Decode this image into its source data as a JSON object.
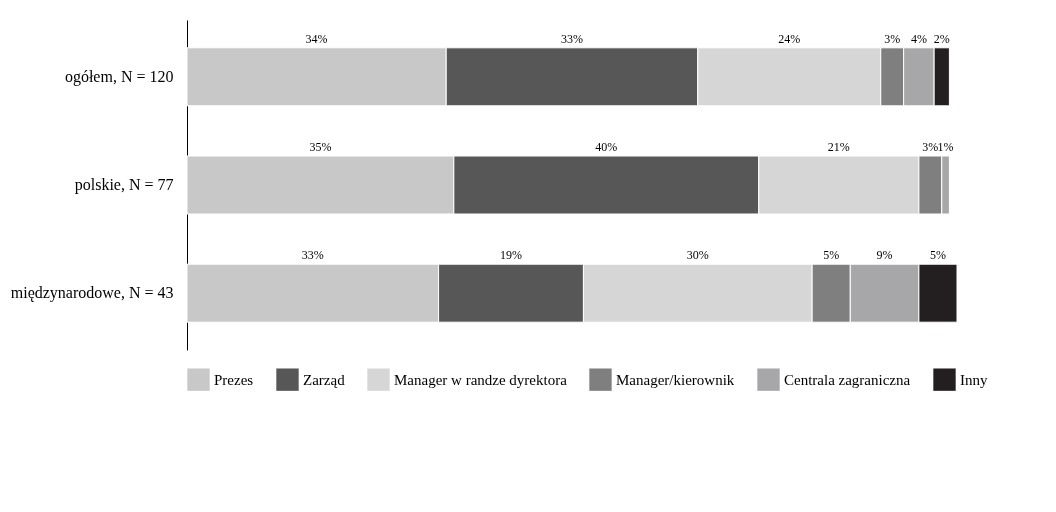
{
  "chart_data": {
    "type": "bar",
    "orientation": "horizontal",
    "stacked": true,
    "legend": "bottom",
    "grid": false,
    "categories": [
      "ogółem, N = 120",
      "polskie, N = 77",
      "międzynarodowe, N = 43"
    ],
    "series": [
      {
        "name": "Prezes",
        "color": "#c8c8c8",
        "values": [
          34,
          35,
          33
        ],
        "value_labels": [
          "34%",
          "35%",
          "33%"
        ]
      },
      {
        "name": "Zarząd",
        "color": "#575757",
        "values": [
          33,
          40,
          19
        ],
        "value_labels": [
          "33%",
          "40%",
          "19%"
        ]
      },
      {
        "name": "Manager w randze dyrektora",
        "color": "#d6d6d6",
        "values": [
          24,
          21,
          30
        ],
        "value_labels": [
          "24%",
          "21%",
          "30%"
        ]
      },
      {
        "name": "Manager/kierownik",
        "color": "#7f7f7f",
        "values": [
          3,
          3,
          5
        ],
        "value_labels": [
          "3%",
          "3%",
          "5%"
        ]
      },
      {
        "name": "Centrala zagraniczna",
        "color": "#a7a7a9",
        "values": [
          4,
          1,
          9
        ],
        "value_labels": [
          "4%",
          "1%",
          "9%"
        ]
      },
      {
        "name": "Inny",
        "color": "#231f20",
        "values": [
          2,
          null,
          5
        ],
        "value_labels": [
          "2%",
          null,
          "5%"
        ]
      }
    ]
  }
}
